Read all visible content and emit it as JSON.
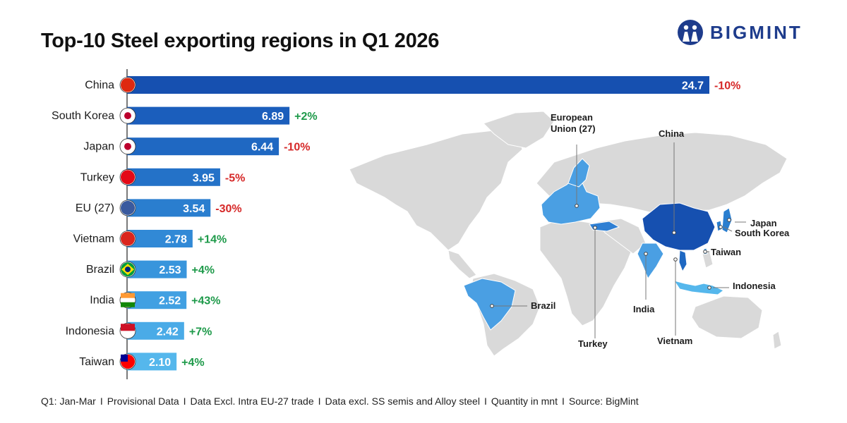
{
  "header": {
    "title": "Top-10 Steel exporting regions in Q1 2026",
    "brand": "BIGMINT"
  },
  "colors": {
    "positive": "#1e9a4a",
    "negative": "#d62828",
    "bar_shades": [
      "#1650b0",
      "#1b5ebc",
      "#1f68c2",
      "#2472c8",
      "#2a7ecf",
      "#3189d6",
      "#3895dc",
      "#41a0e2",
      "#4aabe7",
      "#55b7ec"
    ],
    "map_land": "#d9d9d9",
    "map_highlight": "#4a9fe3",
    "map_china": "#1650b0"
  },
  "chart_data": {
    "type": "bar",
    "orientation": "horizontal",
    "title": "Top-10 Steel exporting regions in Q1 2026",
    "categories": [
      "China",
      "South Korea",
      "Japan",
      "Turkey",
      "EU (27)",
      "Vietnam",
      "Brazil",
      "India",
      "Indonesia",
      "Taiwan"
    ],
    "values": [
      24.7,
      6.89,
      6.44,
      3.95,
      3.54,
      2.78,
      2.53,
      2.52,
      2.42,
      2.1
    ],
    "value_labels": [
      "24.7",
      "6.89",
      "6.44",
      "3.95",
      "3.54",
      "2.78",
      "2.53",
      "2.52",
      "2.42",
      "2.10"
    ],
    "changes": [
      "-10%",
      "+2%",
      "-10%",
      "-5%",
      "-30%",
      "+14%",
      "+4%",
      "+43%",
      "+7%",
      "+4%"
    ],
    "flag_icons": [
      "china-flag-icon",
      "south-korea-flag-icon",
      "japan-flag-icon",
      "turkey-flag-icon",
      "eu-flag-icon",
      "vietnam-flag-icon",
      "brazil-flag-icon",
      "india-flag-icon",
      "indonesia-flag-icon",
      "taiwan-flag-icon"
    ],
    "xlim": [
      0,
      24.7
    ],
    "grid": false,
    "legend": "none"
  },
  "map": {
    "labels": [
      "European\nUnion (27)",
      "China",
      "Japan",
      "South Korea",
      "Taiwan",
      "Indonesia",
      "India",
      "Vietnam",
      "Turkey",
      "Brazil"
    ]
  },
  "footer": {
    "items": [
      "Q1: Jan-Mar",
      "Provisional Data",
      "Data Excl. Intra EU-27 trade",
      "Data excl. SS semis and Alloy steel",
      "Quantity in mnt",
      "Source: BigMint"
    ],
    "separator": "I"
  }
}
